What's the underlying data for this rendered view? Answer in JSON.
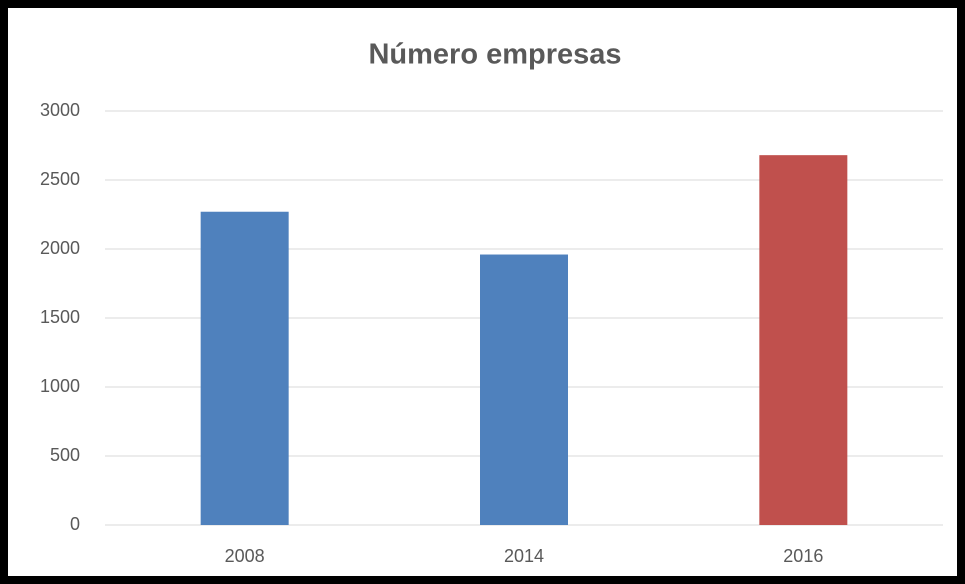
{
  "chart_data": {
    "type": "bar",
    "title": "Número empresas",
    "categories": [
      "2008",
      "2014",
      "2016"
    ],
    "values": [
      2270,
      1960,
      2680
    ],
    "colors": [
      "#4f81bd",
      "#4f81bd",
      "#c0504d"
    ],
    "ylim": [
      0,
      3000
    ],
    "yticks": [
      0,
      500,
      1000,
      1500,
      2000,
      2500,
      3000
    ],
    "grid": true
  }
}
